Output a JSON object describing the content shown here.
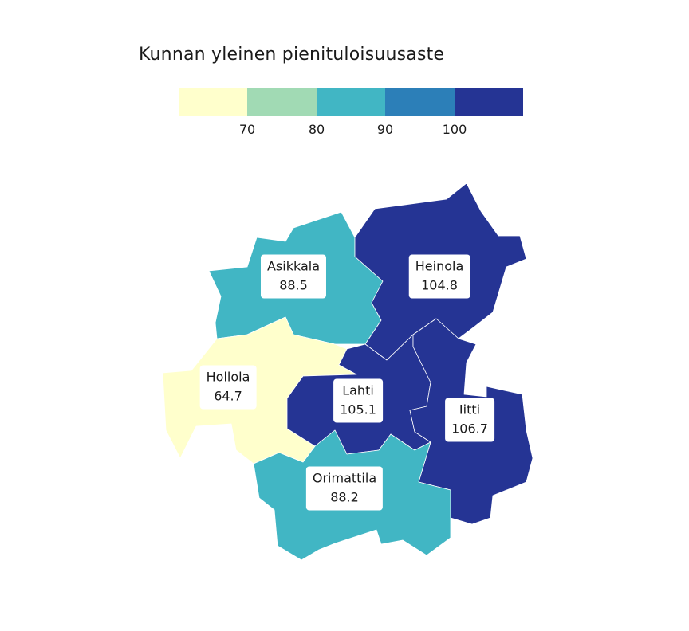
{
  "title": "Kunnan yleinen pienituloisuusaste",
  "legend": {
    "colors": [
      "#ffffcc",
      "#a1dab4",
      "#41b6c4",
      "#2c7fb8",
      "#253494"
    ],
    "ticks": [
      "70",
      "80",
      "90",
      "100"
    ]
  },
  "regions": [
    {
      "name": "Asikkala",
      "value": "88.5",
      "color": "#41b6c4"
    },
    {
      "name": "Heinola",
      "value": "104.8",
      "color": "#253494"
    },
    {
      "name": "Hollola",
      "value": "64.7",
      "color": "#ffffcc"
    },
    {
      "name": "Lahti",
      "value": "105.1",
      "color": "#253494"
    },
    {
      "name": "Iitti",
      "value": "106.7",
      "color": "#253494"
    },
    {
      "name": "Orimattila",
      "value": "88.2",
      "color": "#41b6c4"
    }
  ]
}
